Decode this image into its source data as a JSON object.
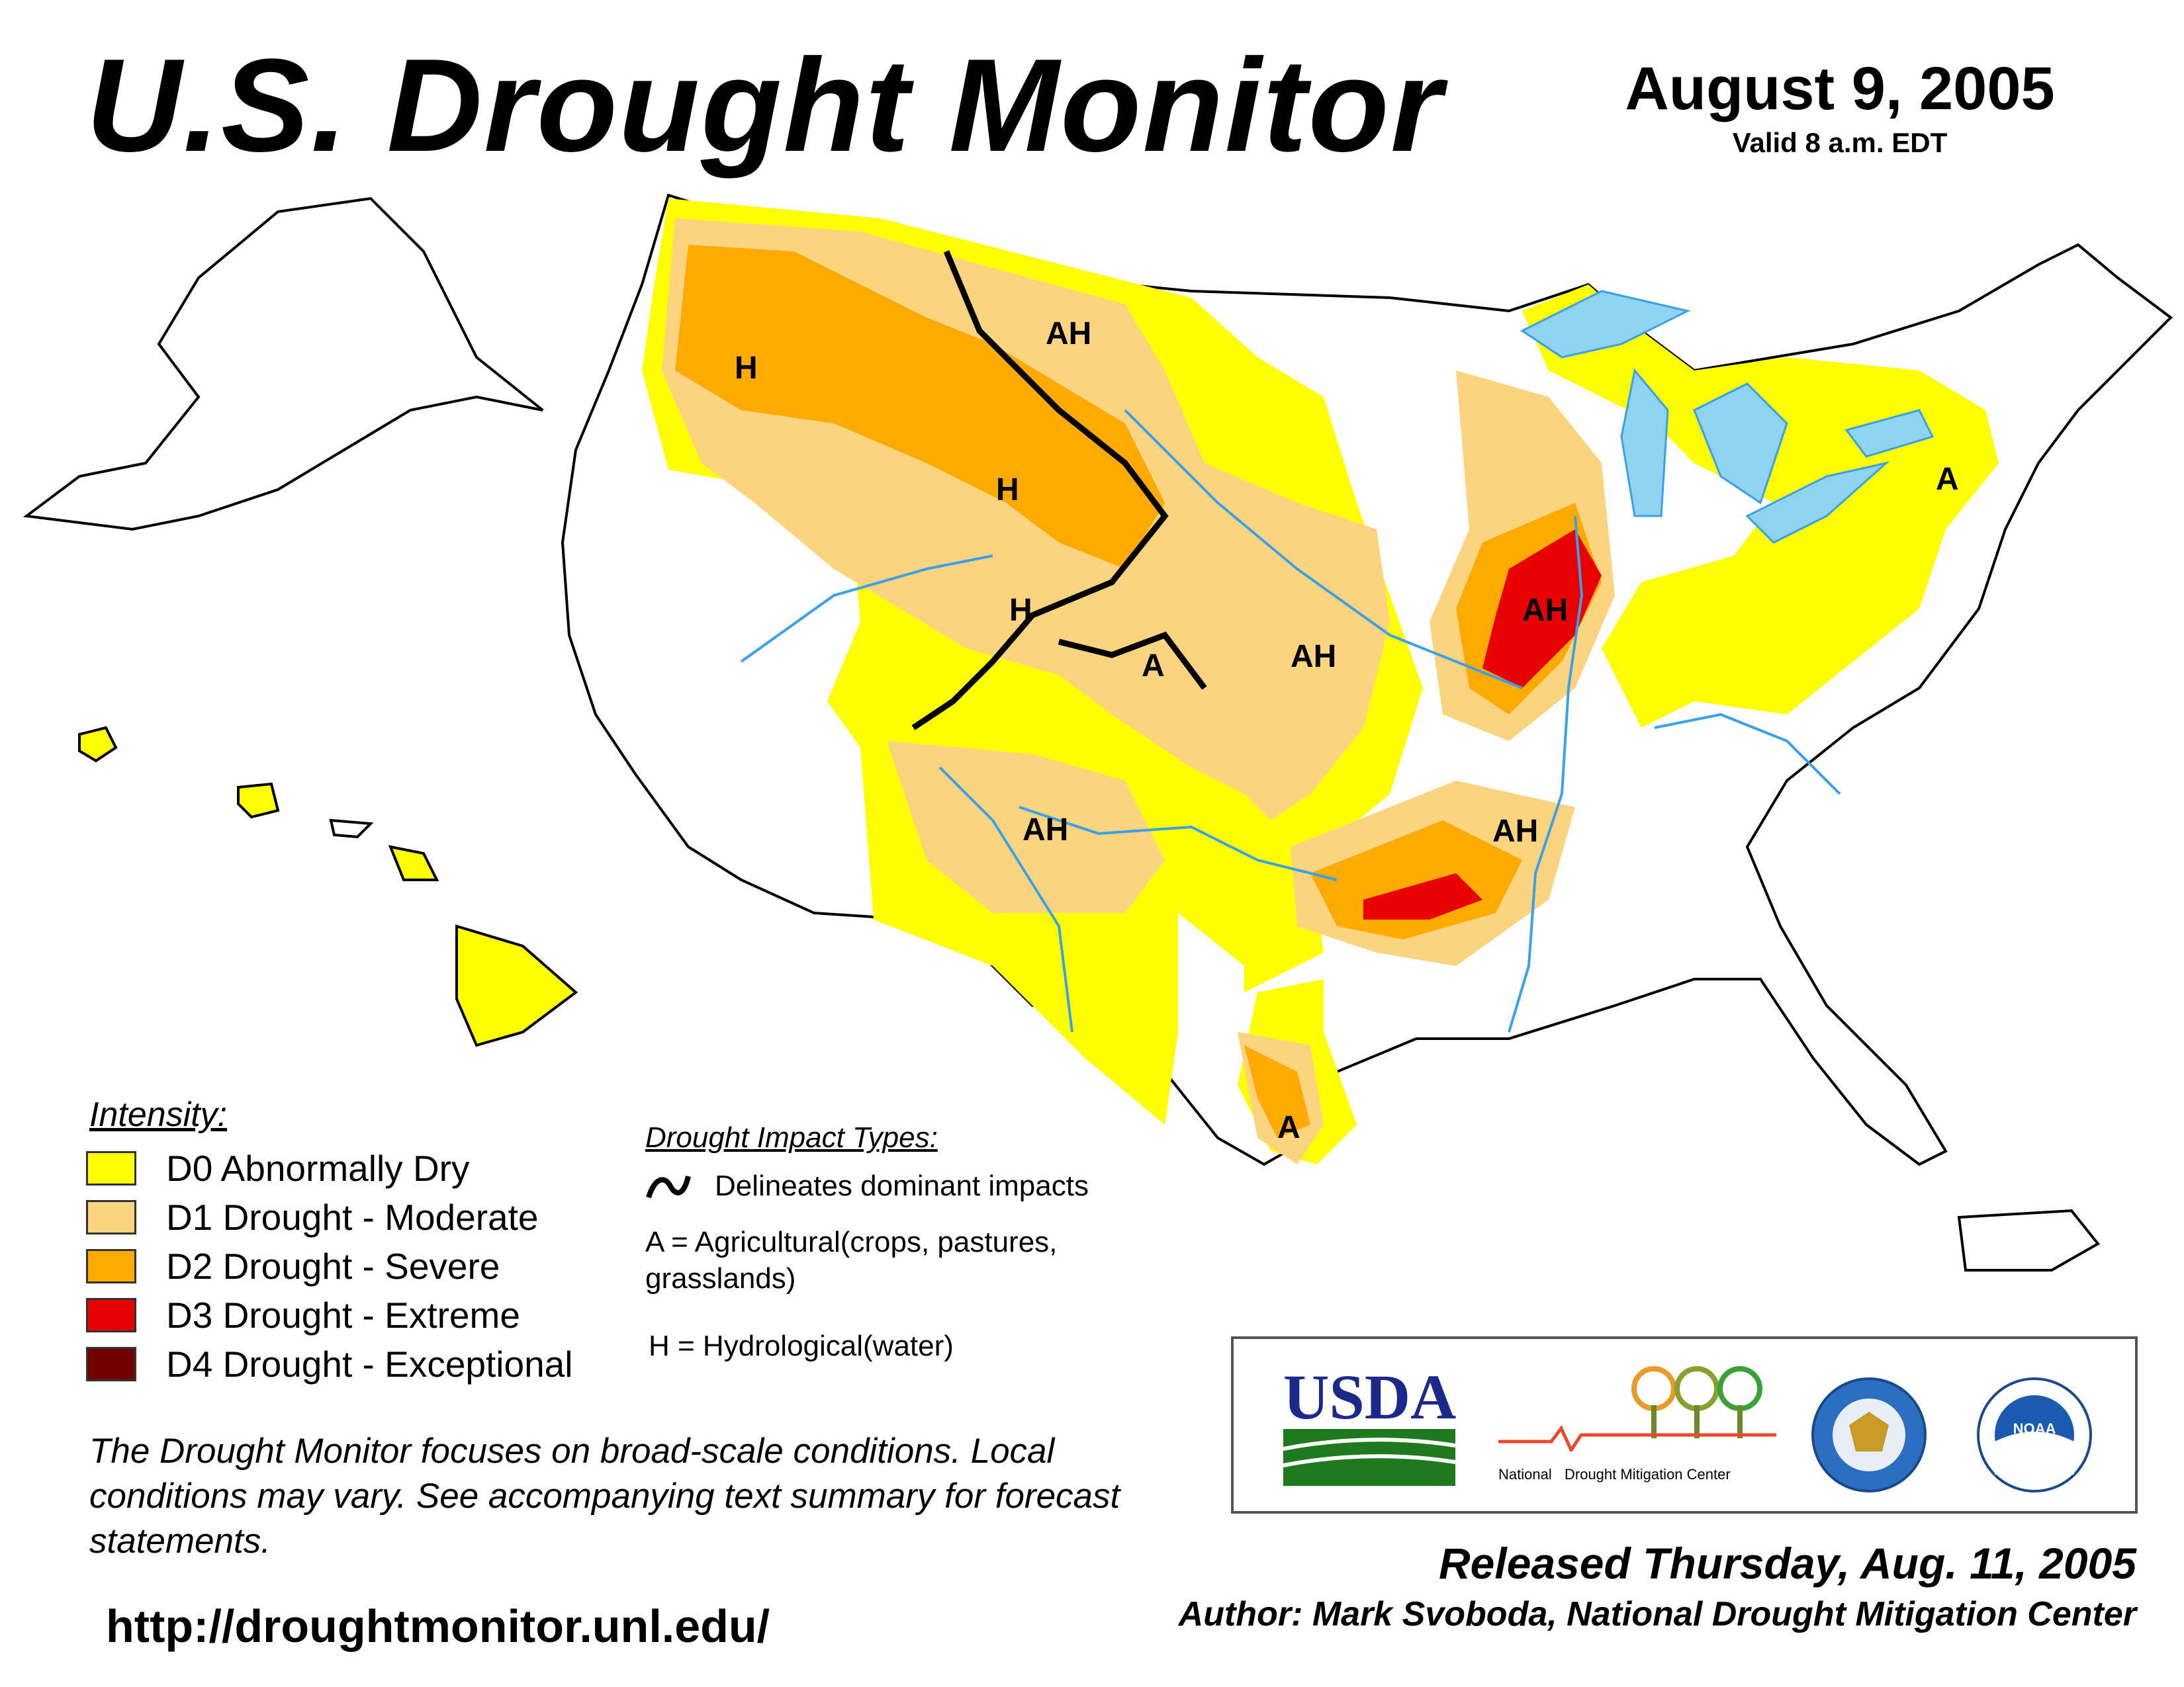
{
  "header": {
    "title": "U.S. Drought Monitor",
    "date": "August 9, 2005",
    "valid": "Valid 8 a.m. EDT"
  },
  "map_labels": [
    "H",
    "AH",
    "H",
    "H",
    "A",
    "AH",
    "AH",
    "AH",
    "AH",
    "A",
    "A"
  ],
  "legend": {
    "title": "Intensity:",
    "items": [
      {
        "label": "D0 Abnormally Dry",
        "color": "#ffff00"
      },
      {
        "label": "D1 Drought - Moderate",
        "color": "#fcd37f"
      },
      {
        "label": "D2 Drought - Severe",
        "color": "#ffaa00"
      },
      {
        "label": "D3 Drought - Extreme",
        "color": "#e60000"
      },
      {
        "label": "D4 Drought - Exceptional",
        "color": "#730000"
      }
    ]
  },
  "impacts": {
    "title": "Drought Impact Types:",
    "line_desc": "Delineates dominant impacts",
    "a_desc": "A = Agricultural(crops, pastures, grasslands)",
    "h_desc": "H = Hydrological(water)"
  },
  "note": "The Drought Monitor focuses on broad-scale conditions. Local conditions may vary. See accompanying text summary for forecast statements.",
  "url": "http://droughtmonitor.unl.edu/",
  "logos": {
    "usda": "USDA",
    "ndmc_a": "National",
    "ndmc_b": "Drought Mitigation Center",
    "noaa": "NOAA"
  },
  "released": "Released Thursday, Aug. 11, 2005",
  "author": "Author: Mark Svoboda, National Drought Mitigation Center",
  "colors": {
    "water": "#8fd3f0",
    "river": "#3aa0e8",
    "state_border": "#000000",
    "county_border": "#9e9e9e"
  }
}
